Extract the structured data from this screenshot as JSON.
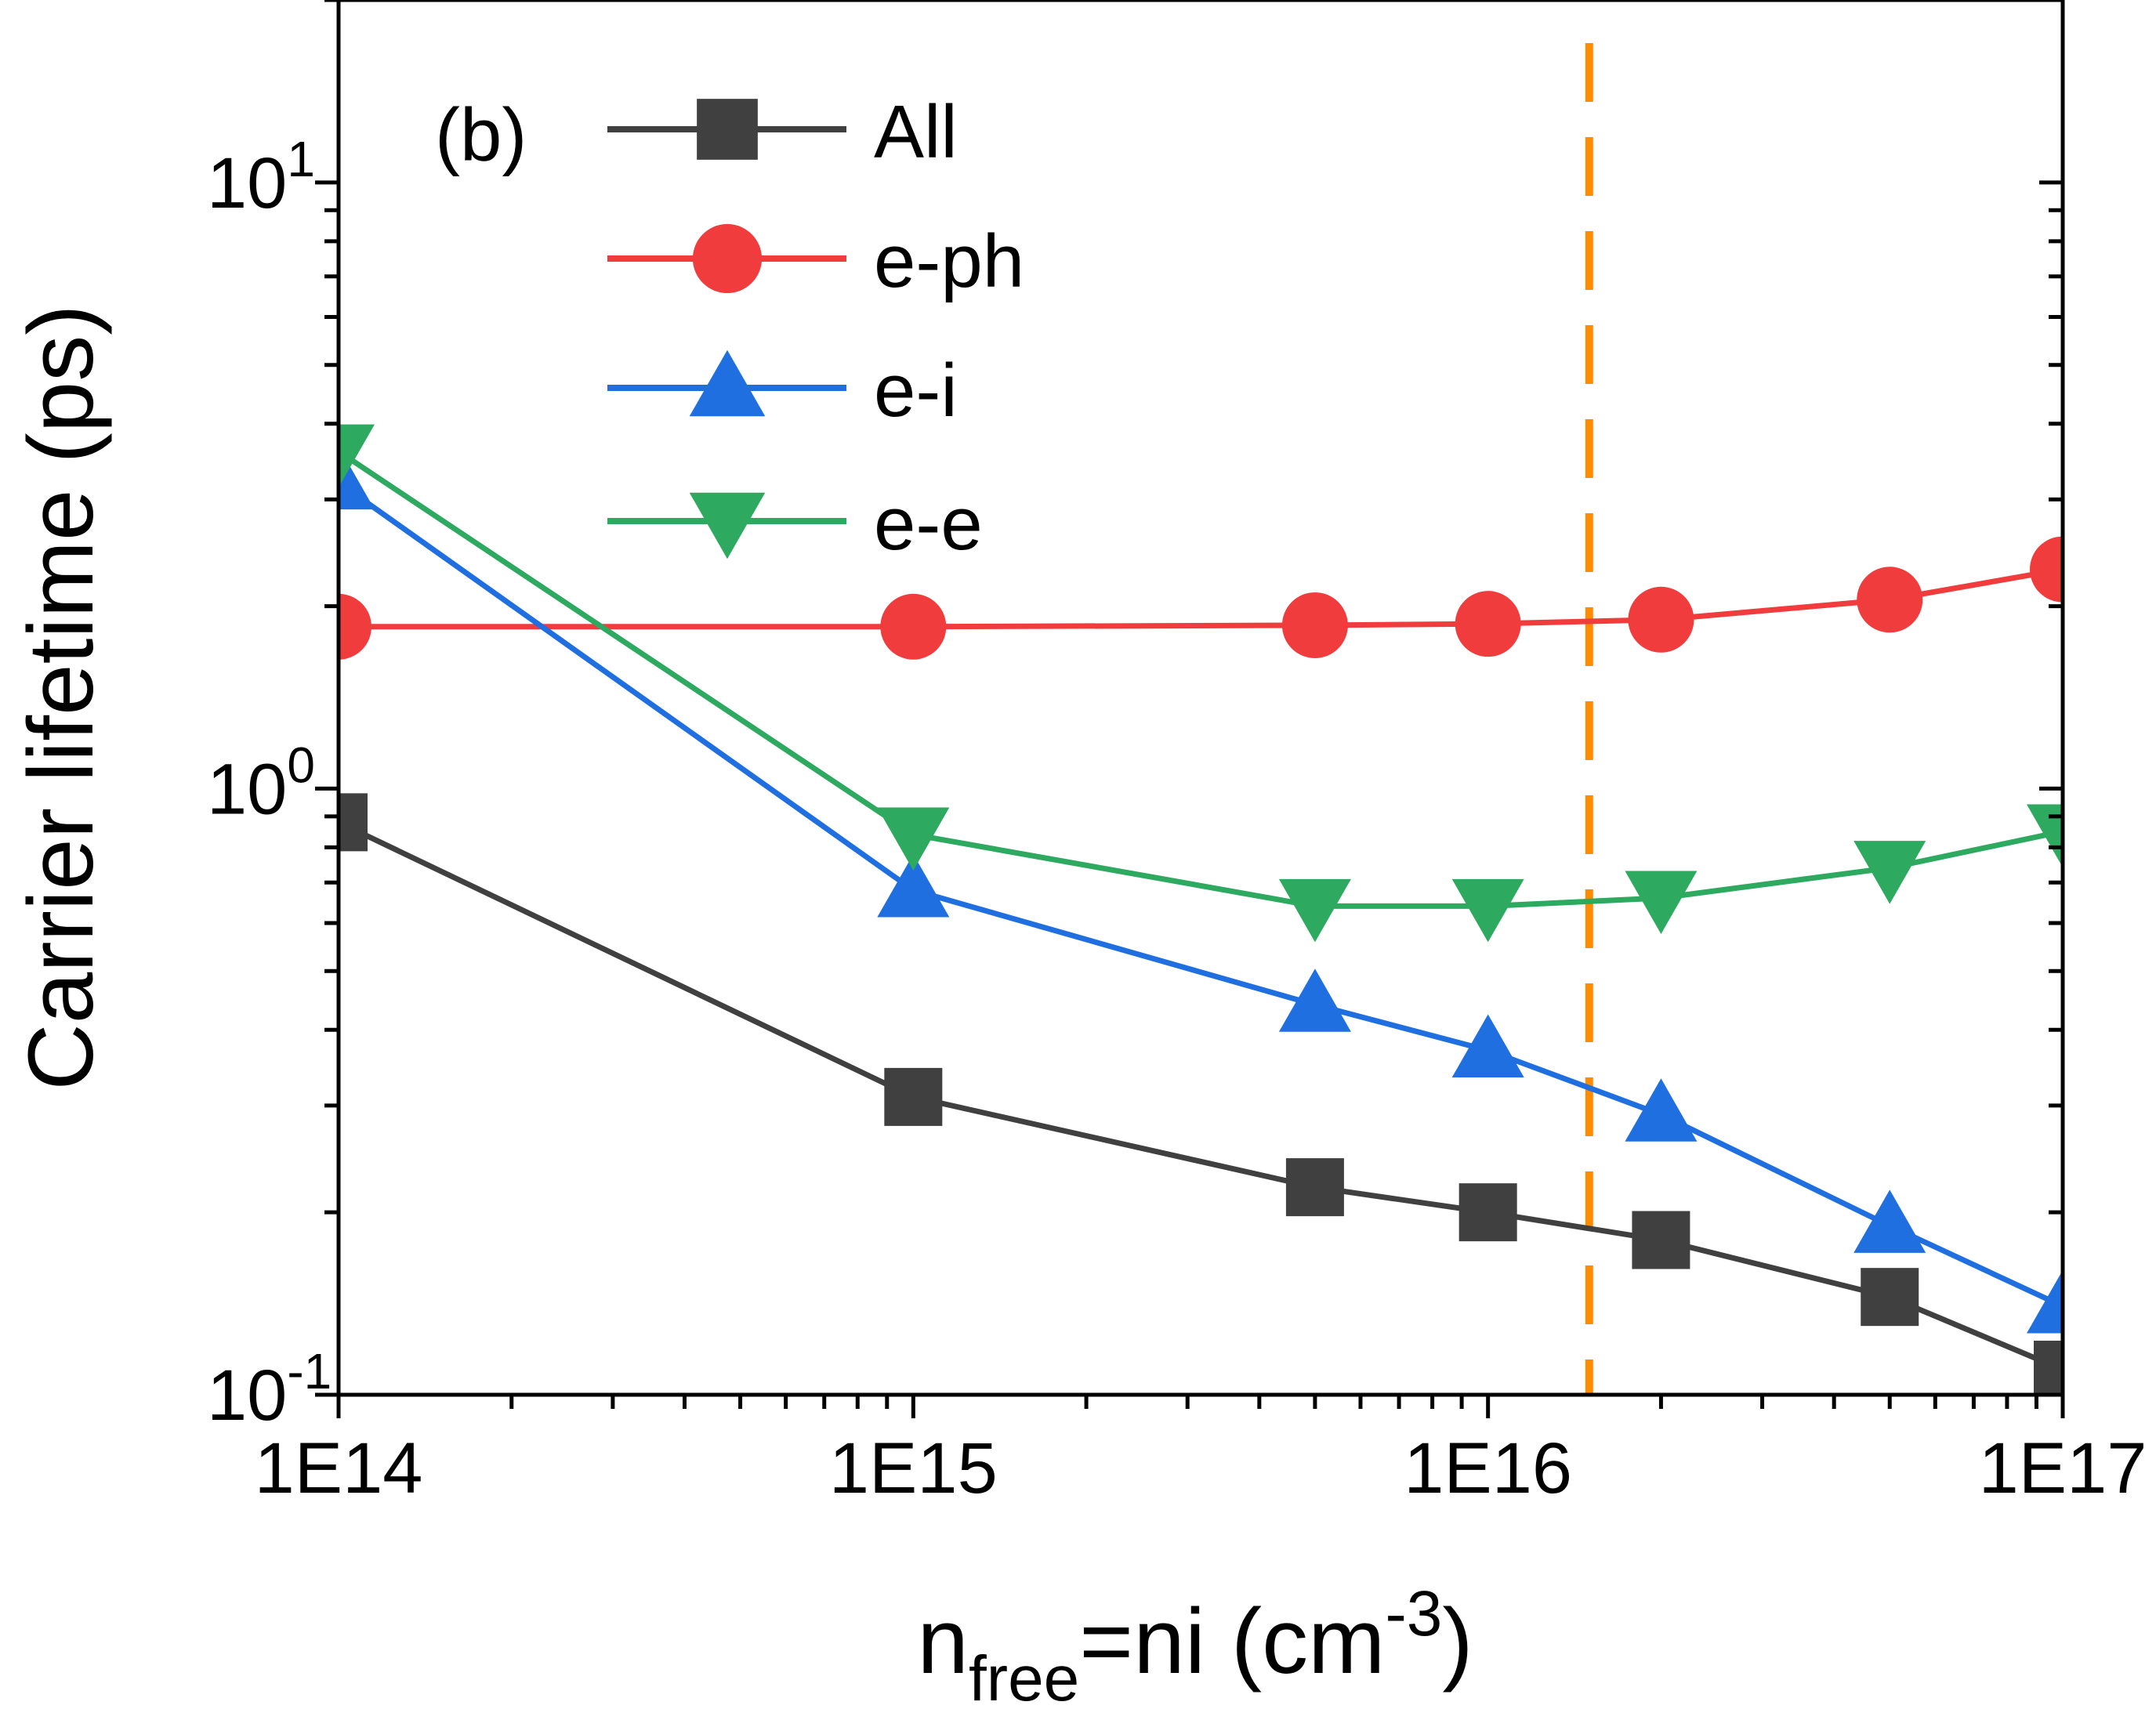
{
  "chart_data": {
    "type": "line",
    "panel_label": "(b)",
    "xscale": "log",
    "yscale": "log",
    "xlim": [
      100000000000000.0,
      1e+17
    ],
    "ylim": [
      0.1,
      20
    ],
    "xlabel": {
      "main": "n",
      "sub": "free",
      "rest": "=ni (cm",
      "sup": "-3",
      "end": ")"
    },
    "ylabel": "Carrier lifetime (ps)",
    "x_ticks": [
      {
        "value": 100000000000000.0,
        "label": "1E14"
      },
      {
        "value": 1000000000000000.0,
        "label": "1E15"
      },
      {
        "value": 1e+16,
        "label": "1E16"
      },
      {
        "value": 1e+17,
        "label": "1E17"
      }
    ],
    "y_ticks": [
      {
        "value": 0.1,
        "base": "10",
        "exp": "-1"
      },
      {
        "value": 1,
        "base": "10",
        "exp": "0"
      },
      {
        "value": 10,
        "base": "10",
        "exp": "1"
      }
    ],
    "x": [
      100000000000000.0,
      1000000000000000.0,
      5000000000000000.0,
      1e+16,
      2e+16,
      5e+16,
      1e+17
    ],
    "series": [
      {
        "name": "All",
        "marker": "square",
        "color": "#404040",
        "values": [
          0.88,
          0.31,
          0.22,
          0.2,
          0.18,
          0.145,
          0.11
        ]
      },
      {
        "name": "e-ph",
        "marker": "circle",
        "color": "#f03c3c",
        "values": [
          1.85,
          1.85,
          1.86,
          1.87,
          1.9,
          2.05,
          2.3
        ]
      },
      {
        "name": "e-i",
        "marker": "triangle-up",
        "color": "#1f6fe0",
        "values": [
          3.2,
          0.68,
          0.44,
          0.37,
          0.29,
          0.19,
          0.14
        ]
      },
      {
        "name": "e-e",
        "marker": "triangle-down",
        "color": "#2daa60",
        "values": [
          3.6,
          0.84,
          0.64,
          0.64,
          0.66,
          0.74,
          0.85
        ]
      }
    ],
    "reference_line": {
      "x": 1.5e+16,
      "color": "#ff8c00",
      "style": "dashed"
    },
    "legend_position": "top-left",
    "grid": false
  }
}
